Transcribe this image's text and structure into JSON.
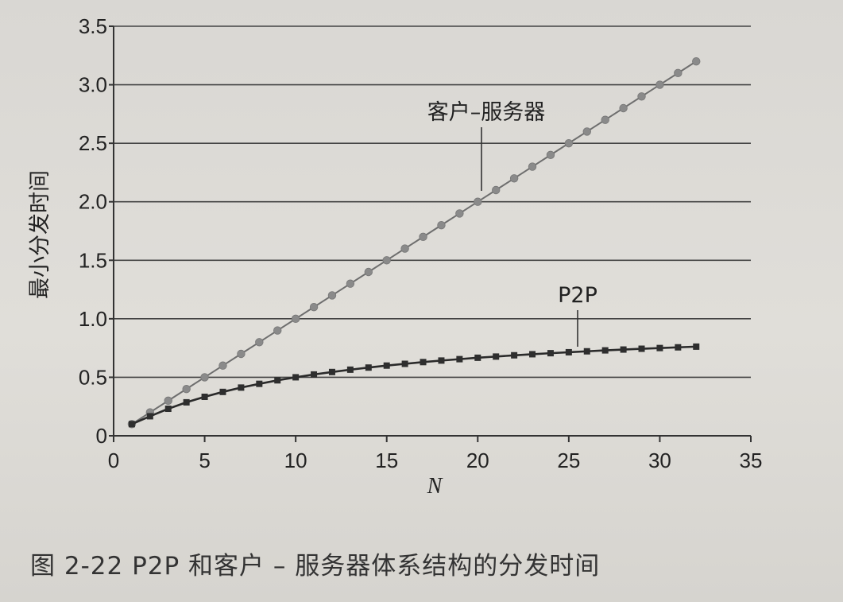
{
  "caption": "图 2-22    P2P 和客户 – 服务器体系结构的分发时间",
  "chart_data": {
    "type": "line",
    "xlabel": "N",
    "ylabel": "最小分发时间",
    "xlim": [
      0,
      35
    ],
    "ylim": [
      0,
      3.5
    ],
    "xticks": [
      "0",
      "5",
      "10",
      "15",
      "20",
      "25",
      "30",
      "35"
    ],
    "yticks": [
      "0",
      "0.5",
      "1.0",
      "1.5",
      "2.0",
      "2.5",
      "3.0",
      "3.5"
    ],
    "grid": "horizontal",
    "x": [
      1,
      2,
      3,
      4,
      5,
      6,
      7,
      8,
      9,
      10,
      11,
      12,
      13,
      14,
      15,
      16,
      17,
      18,
      19,
      20,
      21,
      22,
      23,
      24,
      25,
      26,
      27,
      28,
      29,
      30,
      31,
      32
    ],
    "series": [
      {
        "name": "客户–服务器",
        "marker": "circle",
        "color": "#8a8a8a",
        "values": [
          0.1,
          0.2,
          0.3,
          0.4,
          0.5,
          0.6,
          0.7,
          0.8,
          0.9,
          1.0,
          1.1,
          1.2,
          1.3,
          1.4,
          1.5,
          1.6,
          1.7,
          1.8,
          1.9,
          2.0,
          2.1,
          2.2,
          2.3,
          2.4,
          2.5,
          2.6,
          2.7,
          2.8,
          2.9,
          3.0,
          3.1,
          3.2
        ]
      },
      {
        "name": "P2P",
        "marker": "square",
        "color": "#2e2e2e",
        "values": [
          0.1,
          0.167,
          0.231,
          0.286,
          0.333,
          0.375,
          0.412,
          0.444,
          0.474,
          0.5,
          0.524,
          0.545,
          0.565,
          0.583,
          0.6,
          0.615,
          0.63,
          0.643,
          0.655,
          0.667,
          0.677,
          0.688,
          0.697,
          0.706,
          0.714,
          0.722,
          0.73,
          0.737,
          0.744,
          0.75,
          0.756,
          0.762
        ]
      }
    ]
  }
}
